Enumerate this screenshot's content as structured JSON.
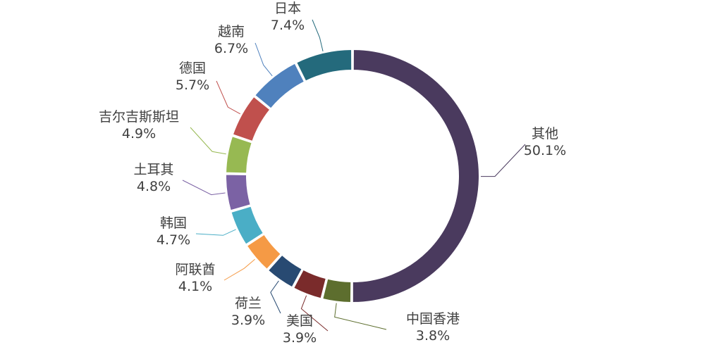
{
  "chart_data": {
    "type": "pie",
    "variant": "donut",
    "slices": [
      {
        "name": "其他",
        "value": 50.1,
        "label": "50.1%",
        "color": "#4a3a5e"
      },
      {
        "name": "中国香港",
        "value": 3.8,
        "label": "3.8%",
        "color": "#5d6e2e"
      },
      {
        "name": "美国",
        "value": 3.9,
        "label": "3.9%",
        "color": "#7a2b2b"
      },
      {
        "name": "荷兰",
        "value": 3.9,
        "label": "3.9%",
        "color": "#284a72"
      },
      {
        "name": "阿联酋",
        "value": 4.1,
        "label": "4.1%",
        "color": "#f59a45"
      },
      {
        "name": "韩国",
        "value": 4.7,
        "label": "4.7%",
        "color": "#4aaec6"
      },
      {
        "name": "土耳其",
        "value": 4.8,
        "label": "4.8%",
        "color": "#7b62a4"
      },
      {
        "name": "吉尔吉斯斯坦",
        "value": 4.9,
        "label": "4.9%",
        "color": "#97b952"
      },
      {
        "name": "德国",
        "value": 5.7,
        "label": "5.7%",
        "color": "#c0504d"
      },
      {
        "name": "越南",
        "value": 6.7,
        "label": "6.7%",
        "color": "#4f81bd"
      },
      {
        "name": "日本",
        "value": 7.4,
        "label": "7.4%",
        "color": "#246a7c"
      }
    ],
    "start": "top",
    "direction": "clockwise",
    "legend": "none"
  }
}
